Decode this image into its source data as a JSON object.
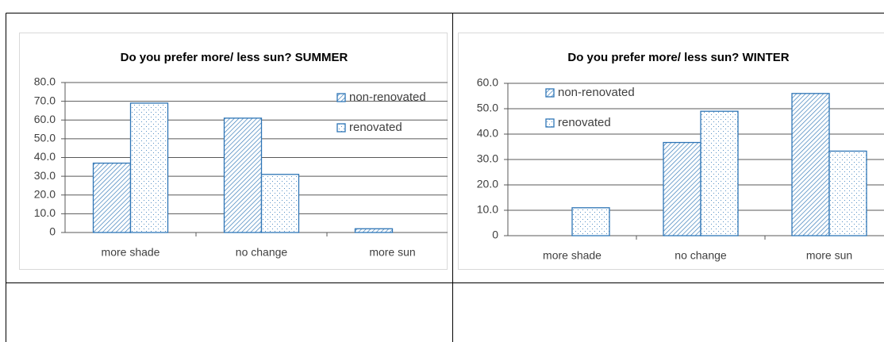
{
  "chart_data": [
    {
      "type": "bar",
      "title": "Do you prefer more/ less sun? SUMMER",
      "categories": [
        "more shade",
        "no change",
        "more sun"
      ],
      "series": [
        {
          "name": "non-renovated",
          "color": "#2e75b6",
          "values": [
            37,
            61,
            2
          ]
        },
        {
          "name": "renovated",
          "color": "#2e75b6",
          "values": [
            69,
            31,
            0
          ]
        }
      ],
      "ylim": [
        0,
        80
      ],
      "yticks": [
        0,
        {
          "value": 10,
          "label": "10.0"
        },
        {
          "value": 20,
          "label": "20.0"
        },
        {
          "value": 30,
          "label": "30.0"
        },
        {
          "value": 40,
          "label": "40.0"
        },
        {
          "value": 50,
          "label": "50.0"
        },
        {
          "value": 60,
          "label": "60.0"
        },
        {
          "value": 70,
          "label": "70.0"
        },
        {
          "value": 80,
          "label": "80.0"
        }
      ],
      "grid": true,
      "legend": "upper right"
    },
    {
      "type": "bar",
      "title": "Do you prefer more/ less sun? WINTER",
      "categories": [
        "more shade",
        "no change",
        "more sun"
      ],
      "series": [
        {
          "name": "non-renovated",
          "color": "#2e75b6",
          "values": [
            0,
            36.7,
            56
          ]
        },
        {
          "name": "renovated",
          "color": "#2e75b6",
          "values": [
            11,
            49,
            33.3
          ]
        }
      ],
      "ylim": [
        0,
        60
      ],
      "yticks": [
        0,
        {
          "value": 10,
          "label": "10.0"
        },
        {
          "value": 20,
          "label": "20.0"
        },
        {
          "value": 30,
          "label": "30.0"
        },
        {
          "value": 40,
          "label": "40.0"
        },
        {
          "value": 50,
          "label": "50.0"
        },
        {
          "value": 60,
          "label": "60.0"
        }
      ],
      "grid": true,
      "legend": "upper left"
    }
  ]
}
